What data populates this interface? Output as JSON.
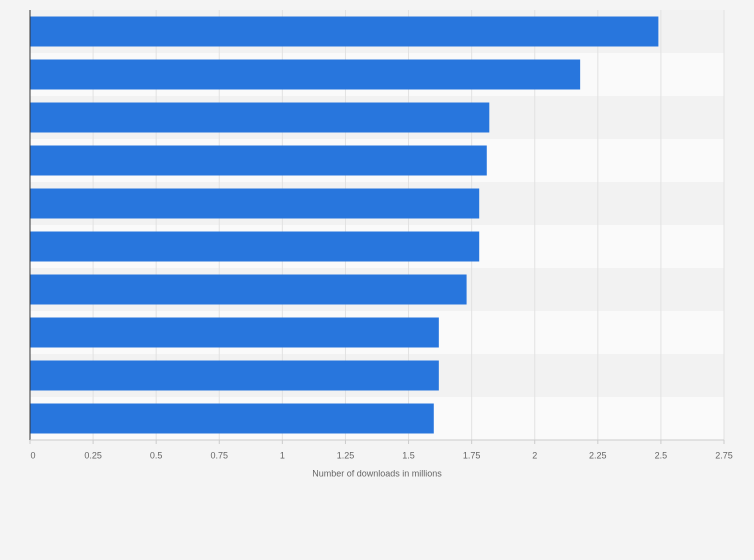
{
  "chart_data": {
    "type": "bar",
    "orientation": "horizontal",
    "x_axis_label": "Number of downloads in millions",
    "categories": [
      null,
      null,
      null,
      null,
      null,
      null,
      null,
      null,
      null,
      null
    ],
    "values": [
      2.49,
      2.18,
      1.82,
      1.81,
      1.78,
      1.78,
      1.73,
      1.62,
      1.62,
      1.6
    ],
    "color": "#2876dd",
    "xlim": [
      0,
      2.75
    ],
    "xticks": [
      0,
      0.25,
      0.5,
      0.75,
      1,
      1.25,
      1.5,
      1.75,
      2,
      2.25,
      2.5,
      2.75
    ],
    "grid": true
  }
}
